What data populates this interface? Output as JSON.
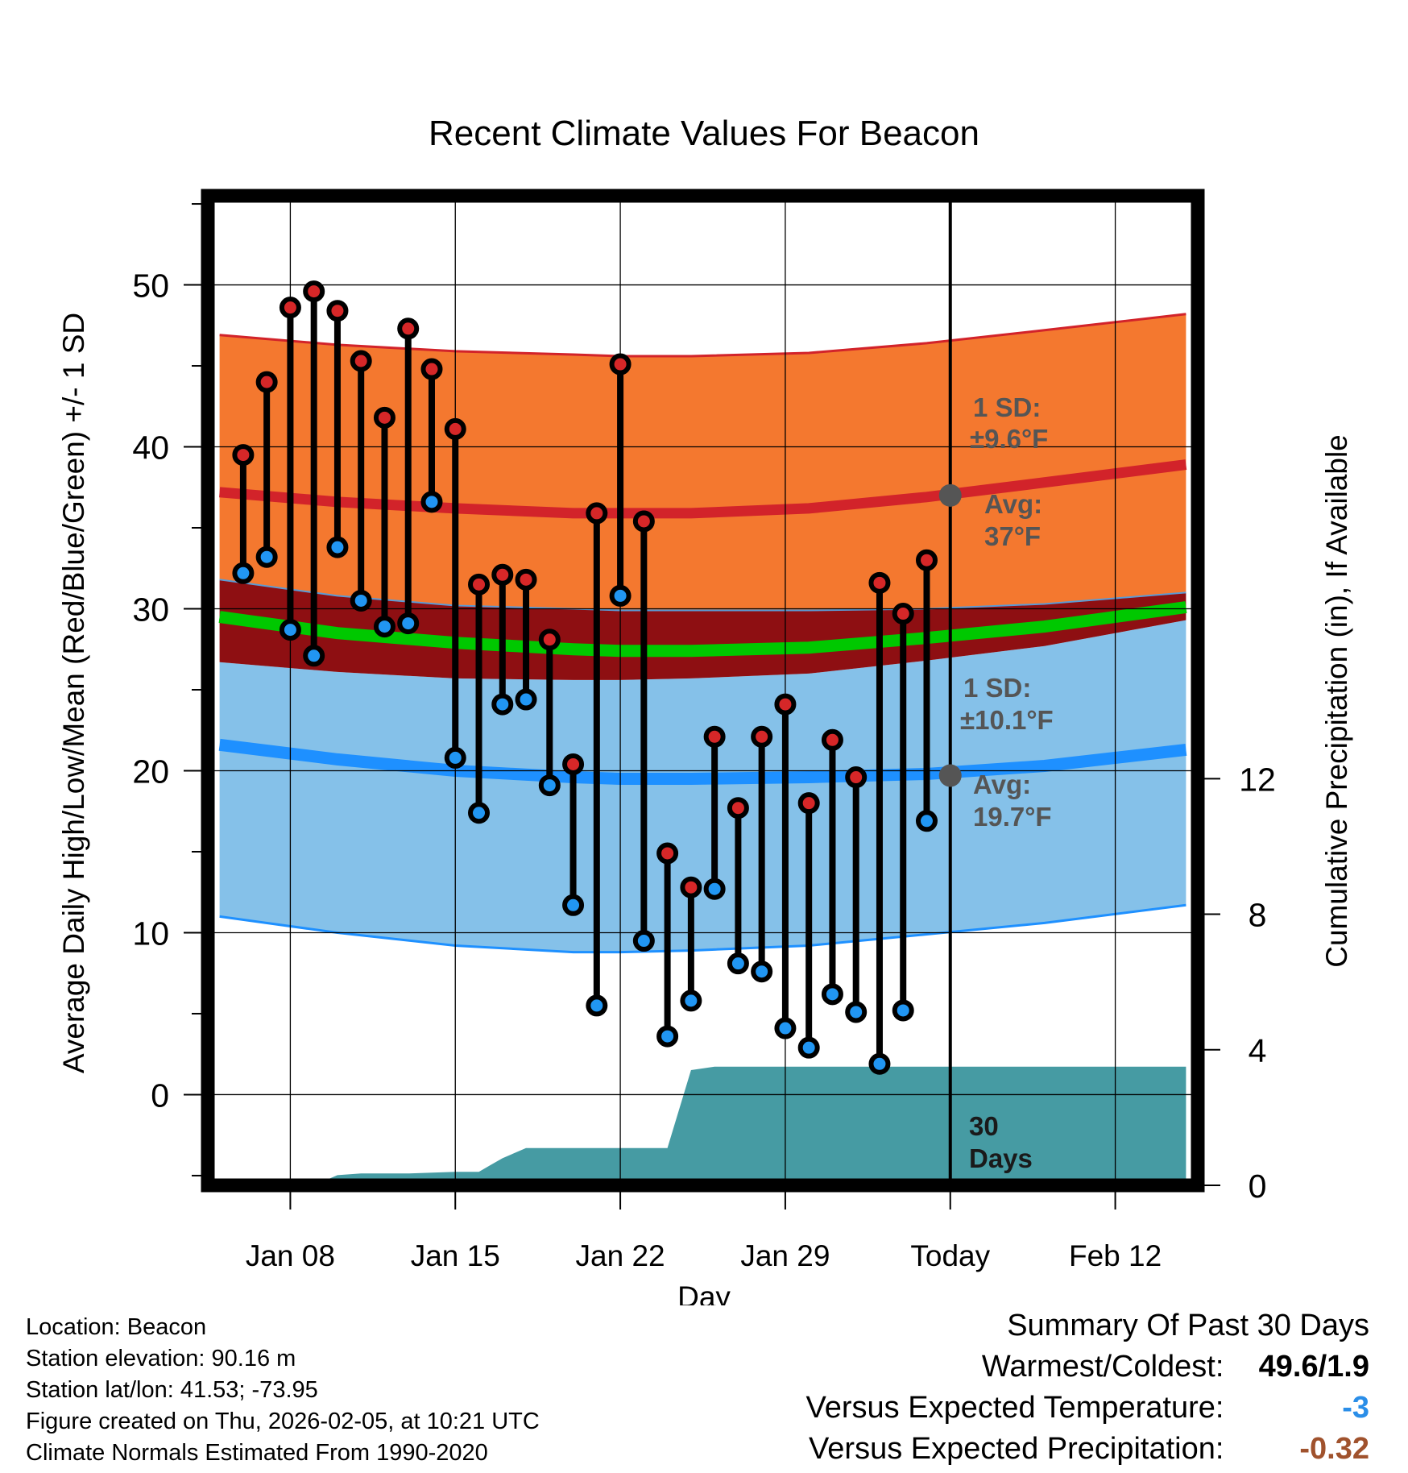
{
  "chart_data": {
    "type": "line",
    "title": "Recent Climate Values For Beacon",
    "xlabel": "Day",
    "ylabel": "Average Daily High/Low/Mean (Red/Blue/Green) +/- 1 SD",
    "ylabel_right": "Cumulative Precipitation (in), If Available",
    "ylim": [
      -5.6,
      55.5
    ],
    "ylim_right": [
      0,
      29.2
    ],
    "y_ticks": [
      0,
      10,
      20,
      30,
      40,
      50
    ],
    "y_right_ticks": [
      0,
      4,
      8,
      12
    ],
    "x_range": [
      4.5,
      46.5
    ],
    "x_ticks": [
      {
        "day": 8,
        "label": "Jan 08"
      },
      {
        "day": 15,
        "label": "Jan 15"
      },
      {
        "day": 22,
        "label": "Jan 22"
      },
      {
        "day": 29,
        "label": "Jan 29"
      },
      {
        "day": 36,
        "label": "Today"
      },
      {
        "day": 43,
        "label": "Feb 12"
      }
    ],
    "today_day": 36,
    "window_label": "30 Days",
    "observed": {
      "days": [
        6,
        7,
        8,
        9,
        10,
        11,
        12,
        13,
        14,
        15,
        16,
        17,
        18,
        19,
        20,
        21,
        22,
        23,
        24,
        25,
        26,
        27,
        28,
        29,
        30,
        31,
        32,
        33,
        34,
        35
      ],
      "highs": [
        39.5,
        44.0,
        48.6,
        49.6,
        48.4,
        45.3,
        41.8,
        47.3,
        44.8,
        41.1,
        31.5,
        32.1,
        31.8,
        28.1,
        20.4,
        35.9,
        45.1,
        35.4,
        14.9,
        12.8,
        22.1,
        17.7,
        22.1,
        24.1,
        18.0,
        21.9,
        19.6,
        31.6,
        29.7,
        33.0
      ],
      "lows": [
        32.2,
        33.2,
        28.7,
        27.1,
        33.8,
        30.5,
        28.9,
        29.1,
        36.6,
        20.8,
        17.4,
        24.1,
        24.4,
        19.1,
        11.7,
        5.5,
        30.8,
        9.5,
        3.6,
        5.8,
        12.7,
        8.1,
        7.6,
        4.1,
        2.9,
        6.2,
        5.1,
        1.9,
        5.2,
        16.9
      ]
    },
    "normals": {
      "x": [
        5,
        10,
        15,
        20,
        22,
        25,
        30,
        35,
        40,
        46
      ],
      "avg_high": [
        37.2,
        36.6,
        36.2,
        35.9,
        35.9,
        35.9,
        36.2,
        36.9,
        37.8,
        38.9
      ],
      "high_plus_1sd": [
        46.9,
        46.3,
        45.9,
        45.7,
        45.6,
        45.6,
        45.8,
        46.4,
        47.2,
        48.2
      ],
      "high_minus_1sd": [
        31.8,
        30.8,
        30.2,
        30.0,
        29.9,
        29.9,
        29.9,
        30.0,
        30.3,
        31.0
      ],
      "avg_mean": [
        29.5,
        28.5,
        27.9,
        27.5,
        27.4,
        27.4,
        27.6,
        28.2,
        28.9,
        30.1
      ],
      "avg_low": [
        21.6,
        20.7,
        20.0,
        19.6,
        19.5,
        19.5,
        19.6,
        19.8,
        20.3,
        21.3
      ],
      "low_plus_1sd": [
        26.7,
        26.1,
        25.7,
        25.6,
        25.6,
        25.7,
        26.0,
        26.8,
        27.7,
        29.3
      ],
      "low_minus_1sd": [
        11.0,
        10.0,
        9.2,
        8.8,
        8.8,
        8.9,
        9.2,
        9.9,
        10.6,
        11.7
      ]
    },
    "precip_cumulative": {
      "x": [
        5,
        9,
        10,
        11,
        13,
        15,
        16,
        16.5,
        17,
        18,
        20,
        21,
        22,
        23,
        24,
        25,
        26,
        27,
        30,
        33,
        36,
        40,
        46
      ],
      "values": [
        0,
        0,
        0.3,
        0.35,
        0.35,
        0.4,
        0.4,
        0.6,
        0.8,
        1.1,
        1.1,
        1.1,
        1.1,
        1.1,
        1.1,
        3.4,
        3.5,
        3.5,
        3.5,
        3.5,
        3.5,
        3.5,
        3.5
      ]
    },
    "annotations": {
      "high_sd_label": "1 SD:",
      "high_sd_value": "±9.6°F",
      "high_avg_label": "Avg:",
      "high_avg_value": "37°F",
      "high_avg_at_today": 37.0,
      "low_sd_label": "1 SD:",
      "low_sd_value": "±10.1°F",
      "low_avg_label": "Avg:",
      "low_avg_value": "19.7°F",
      "low_avg_at_today": 19.7
    },
    "colors": {
      "high_band": "#f4782f",
      "high_line": "#d2232a",
      "overlap_band": "#8e0f12",
      "mean_line": "#00c800",
      "low_band": "#85c1e9",
      "low_line": "#1e90ff",
      "precip": "#469ba3",
      "high_marker": "#d62728",
      "low_marker": "#2196f3",
      "annotation_text": "#555555"
    }
  },
  "info": {
    "location": "Location: Beacon",
    "elevation": "Station elevation: 90.16 m",
    "latlon": "Station lat/lon: 41.53; -73.95",
    "created": "Figure created on Thu, 2026-02-05, at 10:21 UTC",
    "normals": "Climate Normals Estimated From 1990-2020"
  },
  "summary": {
    "title": "Summary Of Past 30 Days",
    "warm_cold_label": "Warmest/Coldest:",
    "warm_cold_value": "49.6/1.9",
    "temp_label": "Versus Expected Temperature:",
    "temp_value": "-3",
    "precip_label": "Versus Expected Precipitation:",
    "precip_value": "-0.32"
  }
}
